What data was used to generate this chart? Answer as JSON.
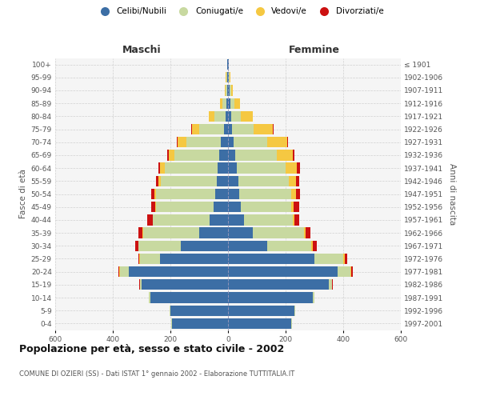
{
  "age_groups": [
    "0-4",
    "5-9",
    "10-14",
    "15-19",
    "20-24",
    "25-29",
    "30-34",
    "35-39",
    "40-44",
    "45-49",
    "50-54",
    "55-59",
    "60-64",
    "65-69",
    "70-74",
    "75-79",
    "80-84",
    "85-89",
    "90-94",
    "95-99",
    "100+"
  ],
  "birth_years": [
    "1997-2001",
    "1992-1996",
    "1987-1991",
    "1982-1986",
    "1977-1981",
    "1972-1976",
    "1967-1971",
    "1962-1966",
    "1957-1961",
    "1952-1956",
    "1947-1951",
    "1942-1946",
    "1937-1941",
    "1932-1936",
    "1927-1931",
    "1922-1926",
    "1917-1921",
    "1912-1916",
    "1907-1911",
    "1902-1906",
    "≤ 1901"
  ],
  "male_celibi": [
    195,
    200,
    270,
    300,
    345,
    235,
    165,
    100,
    65,
    50,
    45,
    38,
    35,
    30,
    25,
    15,
    8,
    5,
    4,
    3,
    2
  ],
  "male_coniugati": [
    2,
    3,
    5,
    5,
    30,
    70,
    145,
    195,
    195,
    200,
    205,
    195,
    185,
    155,
    120,
    85,
    40,
    15,
    5,
    3,
    1
  ],
  "male_vedovi": [
    0,
    0,
    0,
    1,
    2,
    2,
    2,
    2,
    2,
    3,
    5,
    8,
    15,
    20,
    30,
    25,
    18,
    8,
    3,
    1,
    0
  ],
  "male_divorziati": [
    0,
    0,
    0,
    1,
    3,
    5,
    10,
    15,
    18,
    15,
    12,
    10,
    8,
    5,
    3,
    2,
    0,
    0,
    0,
    0,
    0
  ],
  "female_celibi": [
    220,
    230,
    295,
    350,
    380,
    300,
    135,
    85,
    55,
    45,
    40,
    35,
    30,
    25,
    20,
    15,
    10,
    8,
    5,
    3,
    2
  ],
  "female_coniugati": [
    2,
    2,
    5,
    10,
    45,
    100,
    155,
    180,
    170,
    175,
    180,
    175,
    170,
    145,
    115,
    75,
    35,
    15,
    5,
    2,
    1
  ],
  "female_vedovi": [
    0,
    0,
    0,
    1,
    3,
    5,
    5,
    5,
    5,
    8,
    15,
    25,
    40,
    55,
    70,
    65,
    40,
    20,
    8,
    3,
    1
  ],
  "female_divorziati": [
    0,
    0,
    0,
    2,
    5,
    8,
    12,
    15,
    18,
    18,
    15,
    12,
    10,
    5,
    3,
    2,
    0,
    0,
    0,
    0,
    0
  ],
  "colors": {
    "celibi": "#3c6ea5",
    "coniugati": "#c8d9a0",
    "vedovi": "#f5c842",
    "divorziati": "#cc1111"
  },
  "title1": "Popolazione per età, sesso e stato civile - 2002",
  "title2": "COMUNE DI OZIERI (SS) - Dati ISTAT 1° gennaio 2002 - Elaborazione TUTTITALIA.IT",
  "xlabel_left": "Maschi",
  "xlabel_right": "Femmine",
  "ylabel_left": "Fasce di età",
  "ylabel_right": "Anni di nascita",
  "xlim": 600,
  "legend_labels": [
    "Celibi/Nubili",
    "Coniugati/e",
    "Vedovi/e",
    "Divorziati/e"
  ],
  "background_color": "#ffffff",
  "grid_color": "#cccccc"
}
